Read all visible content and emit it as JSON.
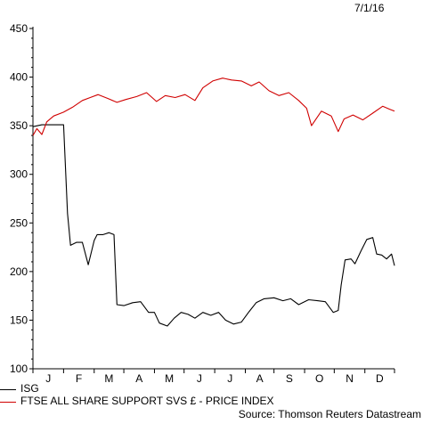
{
  "date_stamp": "7/1/16",
  "source": "Source: Thomson Reuters Datastream",
  "chart_data": {
    "type": "line",
    "title": "",
    "xlabel": "",
    "ylabel": "",
    "ylim": [
      100,
      450
    ],
    "yticks": [
      100,
      150,
      200,
      250,
      300,
      350,
      400,
      450
    ],
    "x_start": "2015-07-01",
    "x_end": "2016-07-01",
    "month_labels": [
      "J",
      "F",
      "M",
      "A",
      "M",
      "J",
      "J",
      "A",
      "S",
      "O",
      "N",
      "D"
    ],
    "grid": false,
    "legend_position": "bottom-left",
    "series": [
      {
        "name": "ISG",
        "color": "#000000",
        "points": [
          [
            "2015-07-01",
            349
          ],
          [
            "2015-07-10",
            351
          ],
          [
            "2015-07-20",
            351
          ],
          [
            "2015-08-01",
            351
          ],
          [
            "2015-08-05",
            260
          ],
          [
            "2015-08-08",
            227
          ],
          [
            "2015-08-14",
            230
          ],
          [
            "2015-08-20",
            230
          ],
          [
            "2015-08-26",
            207
          ],
          [
            "2015-09-01",
            232
          ],
          [
            "2015-09-04",
            238
          ],
          [
            "2015-09-10",
            238
          ],
          [
            "2015-09-16",
            240
          ],
          [
            "2015-09-21",
            238
          ],
          [
            "2015-09-24",
            166
          ],
          [
            "2015-10-01",
            165
          ],
          [
            "2015-10-10",
            168
          ],
          [
            "2015-10-18",
            169
          ],
          [
            "2015-10-26",
            158
          ],
          [
            "2015-11-01",
            158
          ],
          [
            "2015-11-06",
            147
          ],
          [
            "2015-11-14",
            144
          ],
          [
            "2015-11-21",
            152
          ],
          [
            "2015-11-28",
            158
          ],
          [
            "2015-12-05",
            156
          ],
          [
            "2015-12-12",
            152
          ],
          [
            "2015-12-20",
            158
          ],
          [
            "2015-12-28",
            155
          ],
          [
            "2016-01-05",
            158
          ],
          [
            "2016-01-12",
            150
          ],
          [
            "2016-01-20",
            146
          ],
          [
            "2016-01-28",
            148
          ],
          [
            "2016-02-05",
            159
          ],
          [
            "2016-02-12",
            168
          ],
          [
            "2016-02-20",
            172
          ],
          [
            "2016-03-01",
            173
          ],
          [
            "2016-03-10",
            170
          ],
          [
            "2016-03-18",
            172
          ],
          [
            "2016-03-26",
            166
          ],
          [
            "2016-04-05",
            171
          ],
          [
            "2016-04-14",
            170
          ],
          [
            "2016-04-22",
            169
          ],
          [
            "2016-04-30",
            158
          ],
          [
            "2016-05-05",
            160
          ],
          [
            "2016-05-08",
            186
          ],
          [
            "2016-05-12",
            212
          ],
          [
            "2016-05-18",
            213
          ],
          [
            "2016-05-22",
            208
          ],
          [
            "2016-05-28",
            221
          ],
          [
            "2016-06-03",
            233
          ],
          [
            "2016-06-09",
            235
          ],
          [
            "2016-06-13",
            218
          ],
          [
            "2016-06-18",
            217
          ],
          [
            "2016-06-23",
            213
          ],
          [
            "2016-06-28",
            218
          ],
          [
            "2016-07-01",
            206
          ]
        ]
      },
      {
        "name": "FTSE ALL SHARE SUPPORT SVS £ - PRICE INDEX",
        "color": "#d00000",
        "points": [
          [
            "2015-07-01",
            340
          ],
          [
            "2015-07-05",
            347
          ],
          [
            "2015-07-10",
            341
          ],
          [
            "2015-07-15",
            354
          ],
          [
            "2015-07-22",
            360
          ],
          [
            "2015-08-01",
            364
          ],
          [
            "2015-08-10",
            369
          ],
          [
            "2015-08-20",
            376
          ],
          [
            "2015-08-28",
            379
          ],
          [
            "2015-09-05",
            382
          ],
          [
            "2015-09-15",
            378
          ],
          [
            "2015-09-24",
            374
          ],
          [
            "2015-10-03",
            377
          ],
          [
            "2015-10-14",
            380
          ],
          [
            "2015-10-24",
            384
          ],
          [
            "2015-11-03",
            375
          ],
          [
            "2015-11-12",
            381
          ],
          [
            "2015-11-22",
            379
          ],
          [
            "2015-12-02",
            382
          ],
          [
            "2015-12-12",
            376
          ],
          [
            "2015-12-20",
            389
          ],
          [
            "2015-12-30",
            396
          ],
          [
            "2016-01-09",
            399
          ],
          [
            "2016-01-18",
            397
          ],
          [
            "2016-01-28",
            396
          ],
          [
            "2016-02-07",
            391
          ],
          [
            "2016-02-15",
            395
          ],
          [
            "2016-02-25",
            386
          ],
          [
            "2016-03-06",
            381
          ],
          [
            "2016-03-16",
            384
          ],
          [
            "2016-03-26",
            376
          ],
          [
            "2016-04-03",
            368
          ],
          [
            "2016-04-08",
            350
          ],
          [
            "2016-04-18",
            365
          ],
          [
            "2016-04-28",
            360
          ],
          [
            "2016-05-05",
            344
          ],
          [
            "2016-05-11",
            357
          ],
          [
            "2016-05-20",
            361
          ],
          [
            "2016-05-30",
            356
          ],
          [
            "2016-06-09",
            363
          ],
          [
            "2016-06-19",
            370
          ],
          [
            "2016-06-26",
            367
          ],
          [
            "2016-07-01",
            365
          ]
        ]
      }
    ]
  }
}
